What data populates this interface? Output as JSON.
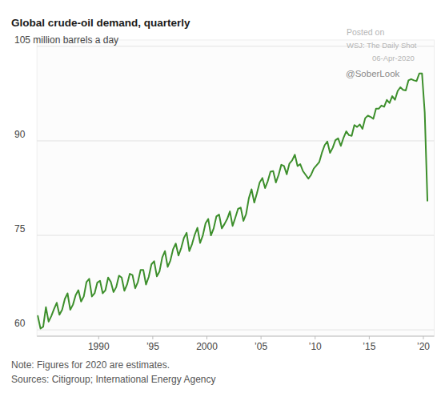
{
  "chart_data": {
    "type": "line",
    "title": "Global crude-oil demand, quarterly",
    "annotations": [
      "Posted on",
      "WSJ: The Daily Shot",
      "06-Apr-2020",
      "@SoberLook"
    ],
    "note": "Note: Figures for 2020 are estimates.",
    "source": "Sources: Citigroup; International Energy Agency",
    "color": "#3d8f2c",
    "grid": true,
    "xlim": [
      1984.3,
      2021
    ],
    "xticks": [
      1990,
      {
        "value": 1995,
        "label": "’95"
      },
      2000,
      {
        "value": 2005,
        "label": "’05"
      },
      {
        "value": 2010,
        "label": "’10"
      },
      {
        "value": 2015,
        "label": "’15"
      },
      {
        "value": 2020,
        "label": "’20"
      }
    ],
    "ylim": [
      59,
      106
    ],
    "yticks": [
      60,
      75,
      90,
      {
        "value": 105,
        "label": "105 million barrels a day"
      }
    ],
    "x": [
      1984.375,
      1984.625,
      1984.875,
      1985.125,
      1985.375,
      1985.625,
      1985.875,
      1986.125,
      1986.375,
      1986.625,
      1986.875,
      1987.125,
      1987.375,
      1987.625,
      1987.875,
      1988.125,
      1988.375,
      1988.625,
      1988.875,
      1989.125,
      1989.375,
      1989.625,
      1989.875,
      1990.125,
      1990.375,
      1990.625,
      1990.875,
      1991.125,
      1991.375,
      1991.625,
      1991.875,
      1992.125,
      1992.375,
      1992.625,
      1992.875,
      1993.125,
      1993.375,
      1993.625,
      1993.875,
      1994.125,
      1994.375,
      1994.625,
      1994.875,
      1995.125,
      1995.375,
      1995.625,
      1995.875,
      1996.125,
      1996.375,
      1996.625,
      1996.875,
      1997.125,
      1997.375,
      1997.625,
      1997.875,
      1998.125,
      1998.375,
      1998.625,
      1998.875,
      1999.125,
      1999.375,
      1999.625,
      1999.875,
      2000.125,
      2000.375,
      2000.625,
      2000.875,
      2001.125,
      2001.375,
      2001.625,
      2001.875,
      2002.125,
      2002.375,
      2002.625,
      2002.875,
      2003.125,
      2003.375,
      2003.625,
      2003.875,
      2004.125,
      2004.375,
      2004.625,
      2004.875,
      2005.125,
      2005.375,
      2005.625,
      2005.875,
      2006.125,
      2006.375,
      2006.625,
      2006.875,
      2007.125,
      2007.375,
      2007.625,
      2007.875,
      2008.125,
      2008.375,
      2008.625,
      2008.875,
      2009.125,
      2009.375,
      2009.625,
      2009.875,
      2010.125,
      2010.375,
      2010.625,
      2010.875,
      2011.125,
      2011.375,
      2011.625,
      2011.875,
      2012.125,
      2012.375,
      2012.625,
      2012.875,
      2013.125,
      2013.375,
      2013.625,
      2013.875,
      2014.125,
      2014.375,
      2014.625,
      2014.875,
      2015.125,
      2015.375,
      2015.625,
      2015.875,
      2016.125,
      2016.375,
      2016.625,
      2016.875,
      2017.125,
      2017.375,
      2017.625,
      2017.875,
      2018.125,
      2018.375,
      2018.625,
      2018.875,
      2019.125,
      2019.375,
      2019.625,
      2019.875,
      2020.125,
      2020.375
    ],
    "values": [
      62.2,
      60.2,
      60.5,
      63.6,
      61.3,
      62.2,
      63.3,
      64.3,
      62.4,
      63.2,
      64.9,
      65.8,
      63.2,
      64.0,
      65.5,
      66.3,
      64.5,
      65.3,
      67.6,
      68.1,
      65.3,
      65.8,
      67.5,
      67.8,
      65.8,
      66.3,
      68.3,
      67.6,
      66.0,
      66.8,
      68.6,
      68.3,
      66.2,
      67.2,
      68.9,
      68.7,
      66.6,
      67.6,
      69.5,
      69.5,
      67.2,
      68.4,
      70.4,
      70.9,
      68.5,
      69.3,
      71.5,
      72.5,
      70.0,
      71.0,
      72.8,
      73.7,
      71.8,
      73.0,
      74.6,
      75.4,
      72.5,
      73.6,
      75.1,
      76.2,
      73.8,
      75.0,
      76.9,
      77.6,
      75.0,
      76.1,
      78.0,
      78.3,
      76.1,
      76.8,
      77.6,
      78.8,
      76.5,
      77.8,
      79.2,
      79.4,
      77.3,
      78.4,
      80.9,
      82.3,
      80.2,
      81.7,
      83.4,
      84.1,
      82.5,
      83.6,
      85.1,
      85.2,
      83.4,
      84.6,
      86.2,
      86.0,
      84.7,
      86.4,
      86.9,
      87.8,
      86.0,
      86.3,
      85.2,
      84.6,
      84.0,
      84.6,
      85.6,
      86.1,
      86.6,
      88.1,
      89.3,
      89.9,
      88.1,
      88.9,
      90.1,
      90.4,
      89.2,
      90.5,
      91.5,
      90.9,
      90.8,
      92.5,
      92.2,
      92.6,
      91.9,
      93.6,
      94.0,
      93.8,
      93.5,
      95.1,
      95.1,
      95.6,
      95.4,
      96.5,
      96.0,
      97.1,
      96.5,
      97.9,
      98.5,
      98.1,
      98.0,
      99.6,
      99.8,
      99.6,
      99.5,
      100.7,
      100.7,
      94.5,
      80.5
    ]
  }
}
